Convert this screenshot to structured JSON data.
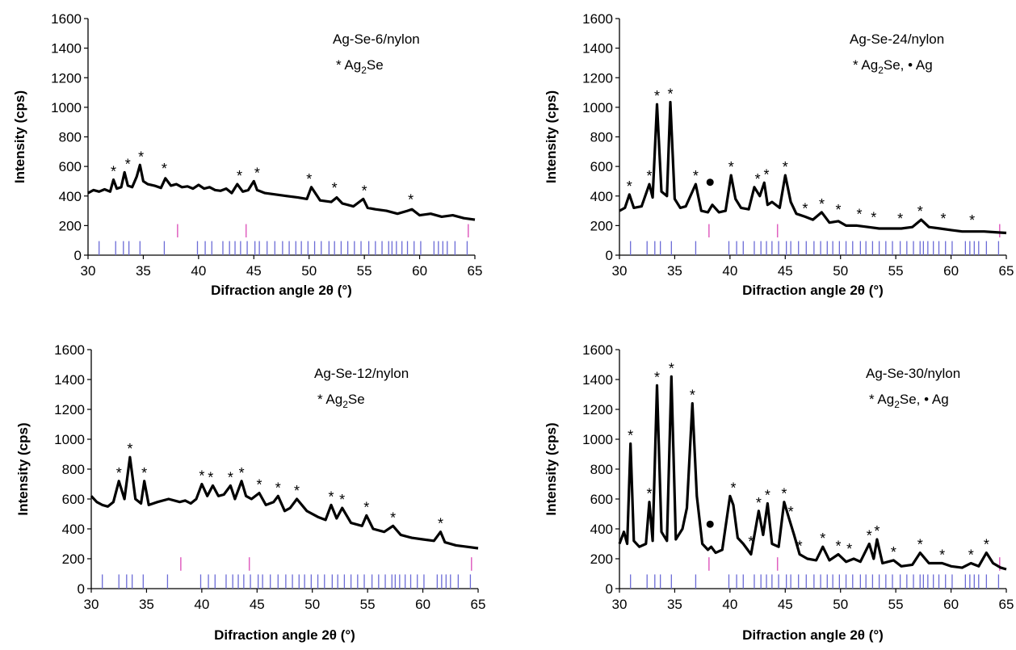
{
  "chart_data": [
    {
      "type": "line",
      "sample": "Ag-Se-6/nylon",
      "phase_prefix": "* Ag",
      "phase_sub": "2",
      "phase_rest": "Se",
      "xlabel": "Difraction angle 2θ (°)",
      "ylabel": "Intensity (cps)",
      "xlim": [
        30,
        65
      ],
      "ylim": [
        0,
        1600
      ],
      "x_ticks": [
        30,
        35,
        40,
        45,
        50,
        55,
        60,
        65
      ],
      "y_ticks": [
        0,
        200,
        400,
        600,
        800,
        1000,
        1200,
        1400,
        1600
      ],
      "series": [
        {
          "x": [
            30,
            30.5,
            31,
            31.5,
            32,
            32.3,
            32.6,
            33,
            33.3,
            33.6,
            34,
            34.4,
            34.7,
            35,
            35.4,
            36,
            36.6,
            37,
            37.5,
            38,
            38.5,
            39,
            39.5,
            40,
            40.5,
            41,
            41.5,
            42,
            42.5,
            43,
            43.5,
            44,
            44.5,
            45,
            45.3,
            46,
            47,
            48,
            49,
            49.8,
            50.2,
            51,
            52,
            52.5,
            53,
            54,
            54.9,
            55.3,
            56,
            57,
            58,
            58.9,
            59.3,
            60,
            61,
            62,
            63,
            64,
            65
          ],
          "y": [
            420,
            440,
            430,
            445,
            430,
            510,
            450,
            460,
            560,
            470,
            460,
            530,
            610,
            500,
            480,
            470,
            455,
            520,
            470,
            480,
            460,
            465,
            450,
            475,
            450,
            460,
            440,
            435,
            450,
            420,
            480,
            430,
            440,
            500,
            440,
            420,
            410,
            400,
            390,
            380,
            460,
            370,
            360,
            390,
            350,
            330,
            380,
            320,
            310,
            300,
            280,
            300,
            310,
            270,
            280,
            260,
            270,
            250,
            240
          ]
        }
      ],
      "peak_markers": [
        {
          "x": 32.3,
          "y": 510,
          "symbol": "*"
        },
        {
          "x": 33.6,
          "y": 560,
          "symbol": "*"
        },
        {
          "x": 34.8,
          "y": 610,
          "symbol": "*"
        },
        {
          "x": 36.9,
          "y": 530,
          "symbol": "*"
        },
        {
          "x": 43.7,
          "y": 480,
          "symbol": "*"
        },
        {
          "x": 45.3,
          "y": 500,
          "symbol": "*"
        },
        {
          "x": 50,
          "y": 460,
          "symbol": "*"
        },
        {
          "x": 52.3,
          "y": 400,
          "symbol": "*"
        },
        {
          "x": 55,
          "y": 380,
          "symbol": "*"
        },
        {
          "x": 59.2,
          "y": 320,
          "symbol": "*"
        }
      ],
      "reference_ag2se": [
        31,
        32.5,
        33.2,
        33.7,
        34.7,
        36.9,
        39.9,
        40.6,
        41.2,
        42.2,
        42.8,
        43.3,
        43.8,
        44.4,
        45.1,
        45.5,
        46.2,
        46.9,
        47.6,
        48.2,
        48.8,
        49.3,
        49.9,
        50.5,
        51.1,
        51.8,
        52.3,
        52.9,
        53.5,
        54.1,
        54.7,
        55.4,
        56,
        56.6,
        57.2,
        57.5,
        57.9,
        58.4,
        58.9,
        59.5,
        60.1,
        61.3,
        61.7,
        62.1,
        62.5,
        63.2,
        64.3
      ],
      "reference_ag": [
        38.1,
        44.3,
        64.4
      ]
    },
    {
      "type": "line",
      "sample": "Ag-Se-24/nylon",
      "phase_prefix": "* Ag",
      "phase_sub": "2",
      "phase_rest": "Se, • Ag",
      "xlabel": "Difraction angle 2θ (°)",
      "ylabel": "Intensity (cps)",
      "xlim": [
        30,
        65
      ],
      "ylim": [
        0,
        1600
      ],
      "x_ticks": [
        30,
        35,
        40,
        45,
        50,
        55,
        60,
        65
      ],
      "y_ticks": [
        0,
        200,
        400,
        600,
        800,
        1000,
        1200,
        1400,
        1600
      ],
      "series": [
        {
          "x": [
            30,
            30.5,
            30.9,
            31.3,
            32,
            32.7,
            33,
            33.4,
            33.8,
            34.3,
            34.6,
            35,
            35.5,
            36,
            36.9,
            37.4,
            38,
            38.4,
            39,
            39.6,
            40.1,
            40.5,
            41,
            41.7,
            42.2,
            42.7,
            43.1,
            43.4,
            43.8,
            44.5,
            45,
            45.5,
            46,
            46.8,
            47.5,
            48.3,
            49,
            49.8,
            50.5,
            51.5,
            52.5,
            53.5,
            54.5,
            55.5,
            56.5,
            57.3,
            58,
            59,
            60,
            61,
            62,
            63,
            64,
            65
          ],
          "y": [
            300,
            320,
            410,
            320,
            330,
            480,
            390,
            1020,
            430,
            400,
            1035,
            380,
            320,
            330,
            480,
            300,
            290,
            340,
            290,
            300,
            540,
            380,
            320,
            310,
            460,
            400,
            490,
            340,
            360,
            320,
            540,
            360,
            280,
            260,
            240,
            290,
            220,
            230,
            200,
            200,
            190,
            180,
            180,
            180,
            190,
            240,
            190,
            180,
            170,
            160,
            160,
            160,
            155,
            150
          ]
        }
      ],
      "peak_markers": [
        {
          "x": 30.9,
          "y": 410,
          "symbol": "*"
        },
        {
          "x": 32.7,
          "y": 480,
          "symbol": "*"
        },
        {
          "x": 33.4,
          "y": 1020,
          "symbol": "*"
        },
        {
          "x": 34.6,
          "y": 1035,
          "symbol": "*"
        },
        {
          "x": 36.9,
          "y": 480,
          "symbol": "*"
        },
        {
          "x": 38.2,
          "y": 340,
          "symbol": "•"
        },
        {
          "x": 40.1,
          "y": 540,
          "symbol": "*"
        },
        {
          "x": 42.5,
          "y": 460,
          "symbol": "*"
        },
        {
          "x": 43.3,
          "y": 490,
          "symbol": "*"
        },
        {
          "x": 45,
          "y": 540,
          "symbol": "*"
        },
        {
          "x": 46.8,
          "y": 260,
          "symbol": "*"
        },
        {
          "x": 48.3,
          "y": 290,
          "symbol": "*"
        },
        {
          "x": 49.8,
          "y": 250,
          "symbol": "*"
        },
        {
          "x": 51.7,
          "y": 220,
          "symbol": "*"
        },
        {
          "x": 53,
          "y": 200,
          "symbol": "*"
        },
        {
          "x": 55.4,
          "y": 190,
          "symbol": "*"
        },
        {
          "x": 57.2,
          "y": 240,
          "symbol": "*"
        },
        {
          "x": 59.3,
          "y": 190,
          "symbol": "*"
        },
        {
          "x": 61.9,
          "y": 180,
          "symbol": "*"
        }
      ],
      "reference_ag2se": [
        31,
        32.5,
        33.2,
        33.7,
        34.7,
        36.9,
        39.9,
        40.6,
        41.2,
        42.2,
        42.8,
        43.3,
        43.8,
        44.4,
        45.1,
        45.5,
        46.2,
        46.9,
        47.6,
        48.2,
        48.8,
        49.3,
        49.9,
        50.5,
        51.1,
        51.8,
        52.3,
        52.9,
        53.5,
        54.1,
        54.7,
        55.4,
        56,
        56.6,
        57.2,
        57.5,
        57.9,
        58.4,
        58.9,
        59.5,
        60.1,
        61.3,
        61.7,
        62.1,
        62.5,
        63.2,
        64.3
      ],
      "reference_ag": [
        38.1,
        44.3,
        64.4
      ]
    },
    {
      "type": "line",
      "sample": "Ag-Se-12/nylon",
      "phase_prefix": "* Ag",
      "phase_sub": "2",
      "phase_rest": "Se",
      "xlabel": "Difraction angle 2θ (°)",
      "ylabel": "Intensity (cps)",
      "xlim": [
        30,
        65
      ],
      "ylim": [
        0,
        1600
      ],
      "x_ticks": [
        30,
        35,
        40,
        45,
        50,
        55,
        60,
        65
      ],
      "y_ticks": [
        0,
        200,
        400,
        600,
        800,
        1000,
        1200,
        1400,
        1600
      ],
      "series": [
        {
          "x": [
            30,
            30.5,
            31,
            31.5,
            32,
            32.5,
            33,
            33.5,
            34,
            34.5,
            34.8,
            35.2,
            36,
            37,
            38,
            38.5,
            39,
            39.5,
            40,
            40.5,
            41,
            41.5,
            42,
            42.6,
            43,
            43.6,
            44,
            44.5,
            45.2,
            45.8,
            46.5,
            46.9,
            47.5,
            48,
            48.6,
            49.5,
            50.5,
            51.2,
            51.7,
            52.2,
            52.7,
            53.5,
            54.5,
            54.9,
            55.5,
            56.5,
            57.3,
            58,
            59,
            60,
            61,
            61.6,
            62,
            63,
            64,
            65
          ],
          "y": [
            620,
            580,
            560,
            550,
            580,
            720,
            600,
            880,
            600,
            570,
            720,
            560,
            580,
            600,
            580,
            590,
            570,
            600,
            700,
            620,
            690,
            620,
            630,
            690,
            600,
            720,
            620,
            600,
            640,
            560,
            580,
            620,
            520,
            540,
            600,
            520,
            480,
            460,
            560,
            470,
            540,
            440,
            420,
            490,
            400,
            380,
            420,
            360,
            340,
            330,
            320,
            380,
            310,
            290,
            280,
            270
          ]
        }
      ],
      "peak_markers": [
        {
          "x": 32.5,
          "y": 720,
          "symbol": "*"
        },
        {
          "x": 33.5,
          "y": 880,
          "symbol": "*"
        },
        {
          "x": 34.8,
          "y": 720,
          "symbol": "*"
        },
        {
          "x": 40,
          "y": 700,
          "symbol": "*"
        },
        {
          "x": 40.8,
          "y": 690,
          "symbol": "*"
        },
        {
          "x": 42.6,
          "y": 690,
          "symbol": "*"
        },
        {
          "x": 43.6,
          "y": 720,
          "symbol": "*"
        },
        {
          "x": 45.2,
          "y": 640,
          "symbol": "*"
        },
        {
          "x": 46.9,
          "y": 620,
          "symbol": "*"
        },
        {
          "x": 48.6,
          "y": 600,
          "symbol": "*"
        },
        {
          "x": 51.7,
          "y": 560,
          "symbol": "*"
        },
        {
          "x": 52.7,
          "y": 540,
          "symbol": "*"
        },
        {
          "x": 54.9,
          "y": 490,
          "symbol": "*"
        },
        {
          "x": 57.3,
          "y": 420,
          "symbol": "*"
        },
        {
          "x": 61.6,
          "y": 380,
          "symbol": "*"
        }
      ],
      "reference_ag2se": [
        31,
        32.5,
        33.2,
        33.7,
        34.7,
        36.9,
        39.9,
        40.6,
        41.2,
        42.2,
        42.8,
        43.3,
        43.8,
        44.4,
        45.1,
        45.5,
        46.2,
        46.9,
        47.6,
        48.2,
        48.8,
        49.3,
        49.9,
        50.5,
        51.1,
        51.8,
        52.3,
        52.9,
        53.5,
        54.1,
        54.7,
        55.4,
        56,
        56.6,
        57.2,
        57.5,
        57.9,
        58.4,
        58.9,
        59.5,
        60.1,
        61.3,
        61.7,
        62.1,
        62.5,
        63.2,
        64.3
      ],
      "reference_ag": [
        38.1,
        44.3,
        64.4
      ]
    },
    {
      "type": "line",
      "sample": "Ag-Se-30/nylon",
      "phase_prefix": "* Ag",
      "phase_sub": "2",
      "phase_rest": "Se, • Ag",
      "xlabel": "Difraction angle 2θ (°)",
      "ylabel": "Intensity (cps)",
      "xlim": [
        30,
        65
      ],
      "ylim": [
        0,
        1600
      ],
      "x_ticks": [
        30,
        35,
        40,
        45,
        50,
        55,
        60,
        65
      ],
      "y_ticks": [
        0,
        200,
        400,
        600,
        800,
        1000,
        1200,
        1400,
        1600
      ],
      "series": [
        {
          "x": [
            30,
            30.4,
            30.7,
            31,
            31.3,
            31.8,
            32.4,
            32.7,
            33,
            33.4,
            33.8,
            34.3,
            34.7,
            35.1,
            35.7,
            36.1,
            36.6,
            37,
            37.5,
            38,
            38.3,
            38.7,
            39.3,
            40,
            40.3,
            40.7,
            41.2,
            41.9,
            42.6,
            43,
            43.4,
            43.8,
            44.4,
            44.9,
            45.3,
            45.8,
            46.3,
            47,
            47.8,
            48.4,
            49,
            49.8,
            50.5,
            51.2,
            51.8,
            52.6,
            53,
            53.3,
            53.8,
            54.8,
            55.5,
            56.5,
            57.2,
            58,
            59.2,
            60,
            61,
            61.8,
            62.5,
            63.2,
            63.8,
            64.5,
            65
          ],
          "y": [
            300,
            380,
            300,
            970,
            320,
            280,
            300,
            580,
            320,
            1360,
            380,
            320,
            1420,
            330,
            400,
            540,
            1240,
            620,
            300,
            260,
            280,
            240,
            260,
            620,
            560,
            340,
            300,
            230,
            520,
            360,
            570,
            300,
            280,
            580,
            480,
            360,
            230,
            200,
            190,
            280,
            190,
            230,
            180,
            200,
            180,
            300,
            200,
            330,
            170,
            190,
            150,
            160,
            240,
            170,
            170,
            150,
            140,
            170,
            150,
            240,
            170,
            140,
            130
          ]
        }
      ],
      "peak_markers": [
        {
          "x": 31,
          "y": 970,
          "symbol": "*"
        },
        {
          "x": 32.7,
          "y": 580,
          "symbol": "*"
        },
        {
          "x": 33.4,
          "y": 1360,
          "symbol": "*"
        },
        {
          "x": 34.7,
          "y": 1420,
          "symbol": "*"
        },
        {
          "x": 36.6,
          "y": 1240,
          "symbol": "*"
        },
        {
          "x": 38.2,
          "y": 280,
          "symbol": "•"
        },
        {
          "x": 40.3,
          "y": 620,
          "symbol": "*"
        },
        {
          "x": 41.9,
          "y": 260,
          "symbol": "*"
        },
        {
          "x": 42.6,
          "y": 520,
          "symbol": "*"
        },
        {
          "x": 43.4,
          "y": 570,
          "symbol": "*"
        },
        {
          "x": 44.9,
          "y": 580,
          "symbol": "*"
        },
        {
          "x": 45.5,
          "y": 460,
          "symbol": "*"
        },
        {
          "x": 46.3,
          "y": 230,
          "symbol": "*"
        },
        {
          "x": 48.4,
          "y": 280,
          "symbol": "*"
        },
        {
          "x": 49.8,
          "y": 230,
          "symbol": "*"
        },
        {
          "x": 50.8,
          "y": 210,
          "symbol": "*"
        },
        {
          "x": 52.6,
          "y": 300,
          "symbol": "*"
        },
        {
          "x": 53.3,
          "y": 330,
          "symbol": "*"
        },
        {
          "x": 54.8,
          "y": 190,
          "symbol": "*"
        },
        {
          "x": 57.2,
          "y": 240,
          "symbol": "*"
        },
        {
          "x": 59.2,
          "y": 170,
          "symbol": "*"
        },
        {
          "x": 61.8,
          "y": 170,
          "symbol": "*"
        },
        {
          "x": 63.2,
          "y": 240,
          "symbol": "*"
        }
      ],
      "reference_ag2se": [
        31,
        32.5,
        33.2,
        33.7,
        34.7,
        36.9,
        39.9,
        40.6,
        41.2,
        42.2,
        42.8,
        43.3,
        43.8,
        44.4,
        45.1,
        45.5,
        46.2,
        46.9,
        47.6,
        48.2,
        48.8,
        49.3,
        49.9,
        50.5,
        51.1,
        51.8,
        52.3,
        52.9,
        53.5,
        54.1,
        54.7,
        55.4,
        56,
        56.6,
        57.2,
        57.5,
        57.9,
        58.4,
        58.9,
        59.5,
        60.1,
        61.3,
        61.7,
        62.1,
        62.5,
        63.2,
        64.3
      ],
      "reference_ag": [
        38.1,
        44.3,
        64.4
      ]
    }
  ],
  "colors": {
    "trace": "#000000",
    "ref_ag2se": "#6b6bd6",
    "ref_ag": "#e060c0",
    "axis": "#000000"
  }
}
